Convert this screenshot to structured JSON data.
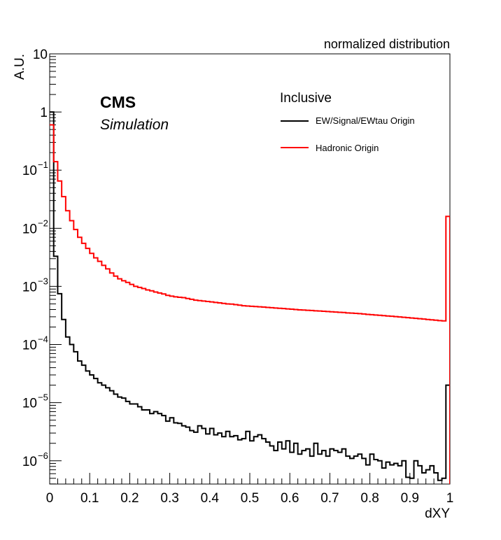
{
  "page": {
    "top_title": "normalized distribution",
    "cms_label": "CMS",
    "sim_label": "Simulation",
    "legend_header": "Inclusive"
  },
  "chart_data": {
    "type": "line",
    "drawstyle": "step",
    "xlabel": "dXY",
    "ylabel": "A.U.",
    "xlim": [
      0,
      1
    ],
    "ylim_log10": [
      -6.4,
      1
    ],
    "yscale": "log",
    "grid": false,
    "legend_placement": "top-right",
    "x_ticks": [
      "0",
      "0.1",
      "0.2",
      "0.3",
      "0.4",
      "0.5",
      "0.6",
      "0.7",
      "0.8",
      "0.9",
      "1"
    ],
    "y_ticks": [
      {
        "base": "10",
        "exp": "",
        "log": 1
      },
      {
        "base": "1",
        "exp": "",
        "log": 0
      },
      {
        "base": "10",
        "exp": "−1",
        "log": -1
      },
      {
        "base": "10",
        "exp": "−2",
        "log": -2
      },
      {
        "base": "10",
        "exp": "−3",
        "log": -3
      },
      {
        "base": "10",
        "exp": "−4",
        "log": -4
      },
      {
        "base": "10",
        "exp": "−5",
        "log": -5
      },
      {
        "base": "10",
        "exp": "−6",
        "log": -6
      }
    ],
    "bin_edges": [
      0,
      1
    ],
    "n_bins": 100,
    "series": [
      {
        "name": "EW/Signal/EWtau Origin",
        "color": "#000000",
        "values": [
          1.0,
          0.0033,
          0.00075,
          0.00027,
          0.000135,
          0.0001,
          7.5e-05,
          5.2e-05,
          4.4e-05,
          3.5e-05,
          3e-05,
          2.6e-05,
          2.2e-05,
          2e-05,
          1.8e-05,
          1.6e-05,
          1.4e-05,
          1.25e-05,
          1.2e-05,
          1.05e-05,
          9.5e-06,
          9.5e-06,
          8.5e-06,
          7.5e-06,
          7.5e-06,
          6.5e-06,
          7e-06,
          6.5e-06,
          6e-06,
          4.8e-06,
          5.5e-06,
          4.5e-06,
          4.4e-06,
          4e-06,
          3.8e-06,
          3.3e-06,
          3.1e-06,
          4e-06,
          3.6e-06,
          2.9e-06,
          3.6e-06,
          2.8e-06,
          3e-06,
          2.6e-06,
          3.2e-06,
          2.6e-06,
          2.7e-06,
          2.3e-06,
          2.4e-06,
          3.2e-06,
          2.2e-06,
          2.6e-06,
          2.8e-06,
          2.4e-06,
          2.1e-06,
          1.8e-06,
          1.5e-06,
          2.1e-06,
          1.6e-06,
          2.2e-06,
          1.4e-06,
          2e-06,
          1.3e-06,
          1.5e-06,
          1.6e-06,
          1.2e-06,
          2e-06,
          1.3e-06,
          1.5e-06,
          1.2e-06,
          1.6e-06,
          1.5e-06,
          1.4e-06,
          1.6e-06,
          1.2e-06,
          1.1e-06,
          1.2e-06,
          1.3e-06,
          1.1e-06,
          8.5e-07,
          1.3e-06,
          1.05e-06,
          1e-06,
          7.5e-07,
          9.5e-07,
          8.5e-07,
          9e-07,
          8.2e-07,
          1e-06,
          5.2e-07,
          5e-07,
          1e-06,
          8.2e-07,
          6.2e-07,
          7e-07,
          8.2e-07,
          6.2e-07,
          4.6e-07,
          5e-07,
          2e-05
        ]
      },
      {
        "name": "Hadronic Origin",
        "color": "#ff0000",
        "values": [
          0.6,
          0.14,
          0.065,
          0.035,
          0.02,
          0.0135,
          0.0095,
          0.007,
          0.0055,
          0.0045,
          0.0037,
          0.0031,
          0.0027,
          0.0023,
          0.002,
          0.0017,
          0.0015,
          0.00135,
          0.00125,
          0.00117,
          0.00108,
          0.001,
          0.00096,
          0.00092,
          0.00087,
          0.00084,
          0.0008,
          0.00077,
          0.00074,
          0.0007,
          0.00068,
          0.00066,
          0.00065,
          0.00064,
          0.00062,
          0.0006,
          0.00058,
          0.00057,
          0.00056,
          0.00055,
          0.00054,
          0.00053,
          0.00052,
          0.00051,
          0.0005,
          0.000495,
          0.000485,
          0.000475,
          0.000465,
          0.00046,
          0.000455,
          0.00045,
          0.000445,
          0.00044,
          0.000435,
          0.00043,
          0.000425,
          0.00042,
          0.000415,
          0.00041,
          0.000405,
          0.0004,
          0.000395,
          0.000392,
          0.000388,
          0.000385,
          0.00038,
          0.000377,
          0.000373,
          0.00037,
          0.000365,
          0.000362,
          0.000358,
          0.000355,
          0.00035,
          0.000347,
          0.000343,
          0.00034,
          0.000335,
          0.00033,
          0.000326,
          0.000322,
          0.000318,
          0.000314,
          0.00031,
          0.000306,
          0.000302,
          0.000298,
          0.000294,
          0.00029,
          0.000286,
          0.000282,
          0.000278,
          0.000274,
          0.00027,
          0.000266,
          0.000262,
          0.000258,
          0.000255,
          0.016
        ]
      }
    ]
  }
}
